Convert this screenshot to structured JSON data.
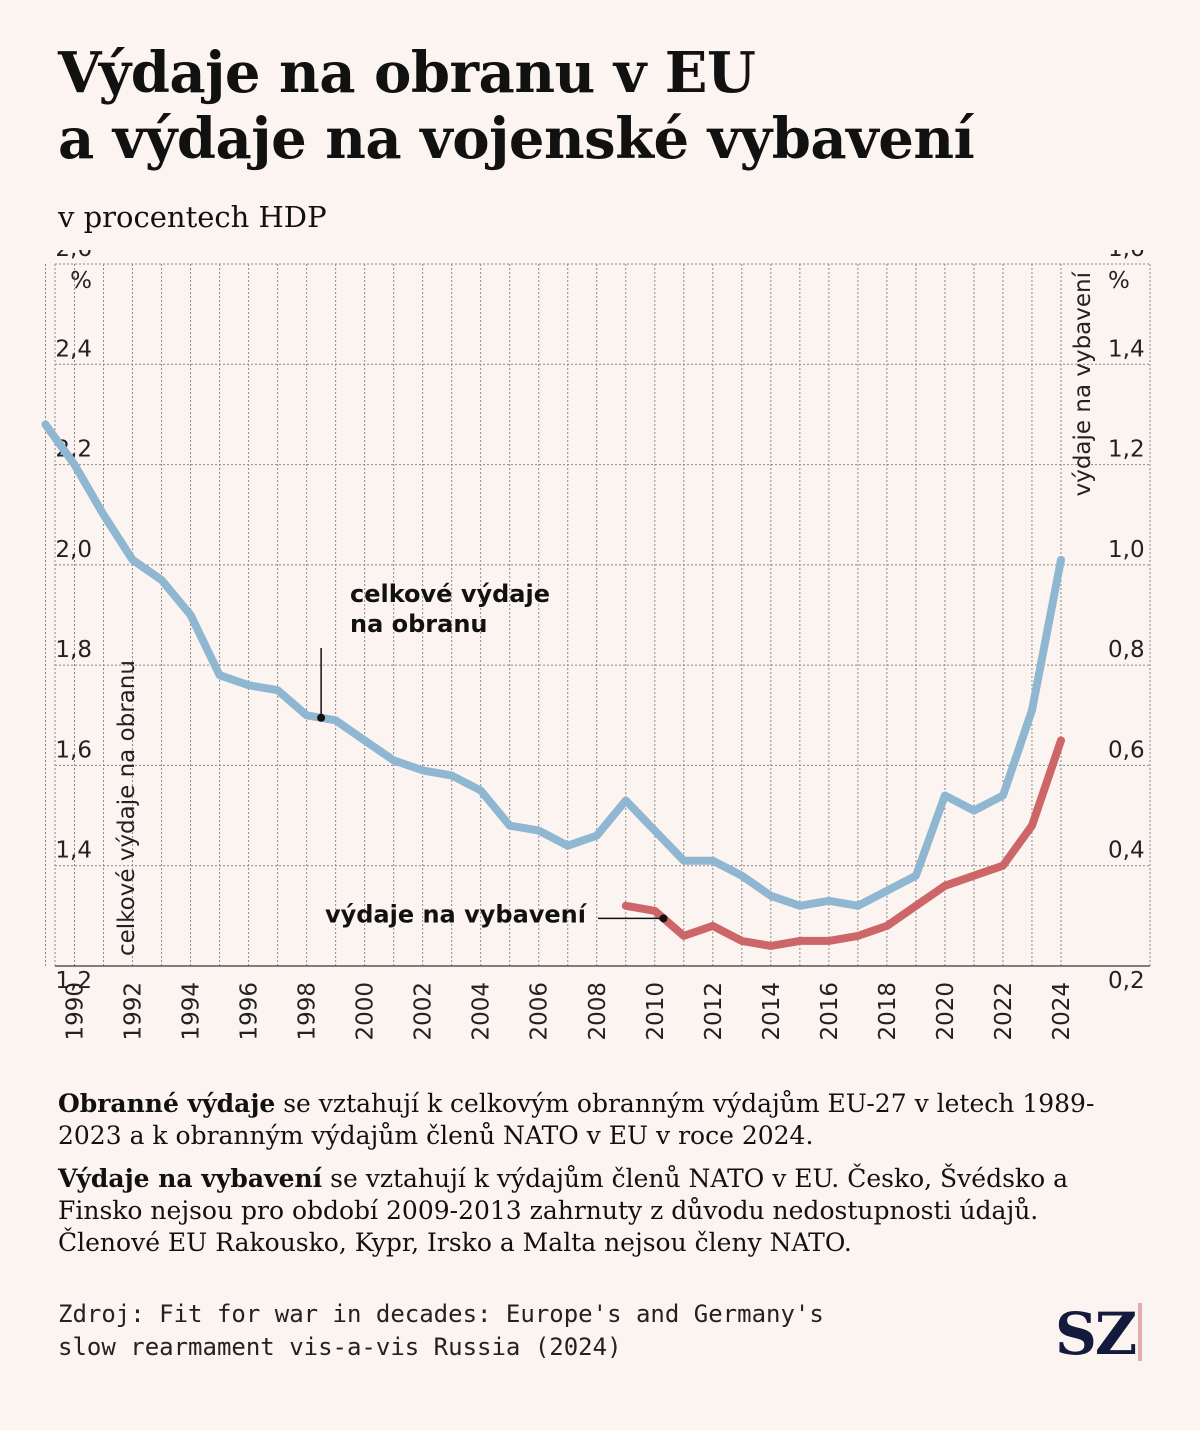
{
  "header": {
    "title_line1": "Výdaje na obranu v EU",
    "title_line2": "a výdaje na vojenské vybavení",
    "subtitle": "v procentech HDP"
  },
  "chart_data": {
    "type": "line",
    "x": [
      1989,
      1990,
      1991,
      1992,
      1993,
      1994,
      1995,
      1996,
      1997,
      1998,
      1999,
      2000,
      2001,
      2002,
      2003,
      2004,
      2005,
      2006,
      2007,
      2008,
      2009,
      2010,
      2011,
      2012,
      2013,
      2014,
      2015,
      2016,
      2017,
      2018,
      2019,
      2020,
      2021,
      2022,
      2023,
      2024
    ],
    "x_ticks": [
      "1990",
      "1992",
      "1994",
      "1996",
      "1998",
      "2000",
      "2002",
      "2004",
      "2006",
      "2008",
      "2010",
      "2012",
      "2014",
      "2016",
      "2018",
      "2020",
      "2022",
      "2024"
    ],
    "left_axis": {
      "label": "celkové výdaje na obranu",
      "unit": "%",
      "ylim": [
        1.2,
        2.6
      ],
      "ticks": [
        "1,2",
        "1,4",
        "1,6",
        "1,8",
        "2,0",
        "2,2",
        "2,4",
        "2,6"
      ]
    },
    "right_axis": {
      "label": "výdaje na vybavení",
      "unit": "%",
      "ylim": [
        0.2,
        1.6
      ],
      "ticks": [
        "0,2",
        "0,4",
        "0,6",
        "0,8",
        "1,0",
        "1,2",
        "1,4",
        "1,6"
      ]
    },
    "series": [
      {
        "name": "celkové výdaje na obranu",
        "axis": "left",
        "color": "#8fb7d1",
        "x": [
          1989,
          1990,
          1991,
          1992,
          1993,
          1994,
          1995,
          1996,
          1997,
          1998,
          1999,
          2000,
          2001,
          2002,
          2003,
          2004,
          2005,
          2006,
          2007,
          2008,
          2009,
          2010,
          2011,
          2012,
          2013,
          2014,
          2015,
          2016,
          2017,
          2018,
          2019,
          2020,
          2021,
          2022,
          2023,
          2024
        ],
        "values": [
          2.28,
          2.2,
          2.1,
          2.01,
          1.97,
          1.9,
          1.78,
          1.76,
          1.75,
          1.7,
          1.69,
          1.65,
          1.61,
          1.59,
          1.58,
          1.55,
          1.48,
          1.47,
          1.44,
          1.46,
          1.53,
          1.47,
          1.41,
          1.41,
          1.38,
          1.34,
          1.32,
          1.33,
          1.32,
          1.35,
          1.38,
          1.54,
          1.51,
          1.54,
          1.71,
          2.01
        ]
      },
      {
        "name": "výdaje na vybavení",
        "axis": "right",
        "color": "#cc6668",
        "x": [
          2009,
          2010,
          2011,
          2012,
          2013,
          2014,
          2015,
          2016,
          2017,
          2018,
          2019,
          2020,
          2021,
          2022,
          2023,
          2024
        ],
        "values": [
          0.32,
          0.31,
          0.26,
          0.28,
          0.25,
          0.24,
          0.25,
          0.25,
          0.26,
          0.28,
          0.32,
          0.36,
          0.38,
          0.4,
          0.48,
          0.65
        ]
      }
    ],
    "annotations": [
      {
        "text_line1": "celkové výdaje",
        "text_line2": "na obranu",
        "series": 0,
        "x": 1998.5
      },
      {
        "text": "výdaje na vybavení",
        "series": 1,
        "x": 2010.3
      }
    ],
    "grid": true
  },
  "notes": {
    "note1_bold": "Obranné výdaje",
    "note1_text": " se vztahují k celkovým obranným výdajům EU-27 v letech 1989-2023 a k obranným výdajům členů NATO v EU v roce 2024.",
    "note2_bold": "Výdaje na vybavení",
    "note2_text": " se vztahují k výdajům členů NATO v EU. Česko, Švédsko a Finsko nejsou pro období 2009-2013 zahrnuty z důvodu nedostupnosti údajů. Členové EU Rakousko, Kypr, Irsko a Malta nejsou členy NATO."
  },
  "footer": {
    "source_line1": "Zdroj: Fit for war in decades: Europe's and Germany's",
    "source_line2": "slow rearmament vis-a-vis Russia (2024)",
    "logo": "SZ",
    "logo_color": "#141a3c",
    "logo_bar_color": "#e2aeb0"
  }
}
